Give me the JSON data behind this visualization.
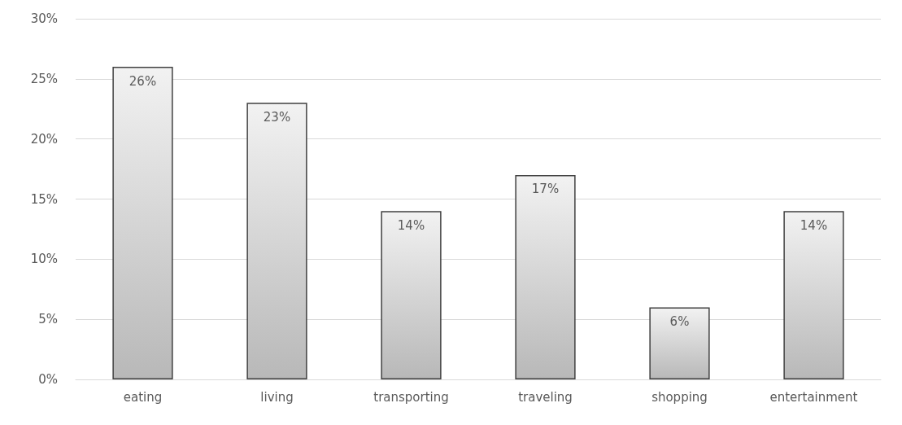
{
  "chart_data": {
    "type": "bar",
    "categories": [
      "eating",
      "living",
      "transporting",
      "traveling",
      "shopping",
      "entertainment"
    ],
    "values": [
      26,
      23,
      14,
      17,
      6,
      14
    ],
    "value_labels": [
      "26%",
      "23%",
      "14%",
      "17%",
      "6%",
      "14%"
    ],
    "color": "#404040",
    "ylim": [
      0,
      30
    ],
    "yticks": [
      {
        "value": 0,
        "label": "0%"
      },
      {
        "value": 5,
        "label": "5%"
      },
      {
        "value": 10,
        "label": "10%"
      },
      {
        "value": 15,
        "label": "15%"
      },
      {
        "value": 20,
        "label": "20%"
      },
      {
        "value": 25,
        "label": "25%"
      },
      {
        "value": 30,
        "label": "30%"
      }
    ],
    "grid": "y"
  }
}
